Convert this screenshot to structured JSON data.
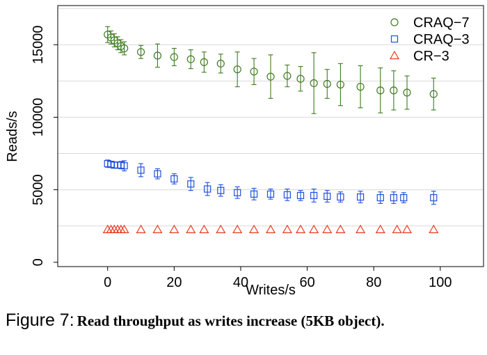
{
  "chart_data": {
    "type": "scatter",
    "xlabel": "Writes/s",
    "ylabel": "Reads/s",
    "xlim": [
      -15,
      113
    ],
    "ylim": [
      -300,
      17700
    ],
    "x_ticks": [
      0,
      20,
      40,
      60,
      80,
      100
    ],
    "y_ticks": [
      0,
      5000,
      10000,
      15000
    ],
    "grid": "horizontal",
    "legend_position": "top-right",
    "series": [
      {
        "name": "CRAQ−7",
        "marker": "circle",
        "color": "#3d7a1e",
        "points": [
          {
            "x": 0,
            "y": 15700,
            "err": 550
          },
          {
            "x": 1,
            "y": 15500,
            "err": 450
          },
          {
            "x": 2,
            "y": 15300,
            "err": 450
          },
          {
            "x": 3,
            "y": 15100,
            "err": 450
          },
          {
            "x": 4,
            "y": 14900,
            "err": 450
          },
          {
            "x": 5,
            "y": 14750,
            "err": 450
          },
          {
            "x": 10,
            "y": 14500,
            "err": 450
          },
          {
            "x": 15,
            "y": 14250,
            "err": 800
          },
          {
            "x": 20,
            "y": 14150,
            "err": 600
          },
          {
            "x": 25,
            "y": 14000,
            "err": 650
          },
          {
            "x": 29,
            "y": 13800,
            "err": 700
          },
          {
            "x": 34,
            "y": 13700,
            "err": 650
          },
          {
            "x": 39,
            "y": 13300,
            "err": 1200
          },
          {
            "x": 44,
            "y": 13150,
            "err": 900
          },
          {
            "x": 49,
            "y": 12800,
            "err": 1500
          },
          {
            "x": 54,
            "y": 12850,
            "err": 750
          },
          {
            "x": 58,
            "y": 12650,
            "err": 850
          },
          {
            "x": 62,
            "y": 12350,
            "err": 2100
          },
          {
            "x": 66,
            "y": 12300,
            "err": 1000
          },
          {
            "x": 70,
            "y": 12250,
            "err": 1450
          },
          {
            "x": 76,
            "y": 12100,
            "err": 1450
          },
          {
            "x": 82,
            "y": 11850,
            "err": 1550
          },
          {
            "x": 86,
            "y": 11850,
            "err": 1350
          },
          {
            "x": 90,
            "y": 11700,
            "err": 1150
          },
          {
            "x": 98,
            "y": 11600,
            "err": 1100
          }
        ]
      },
      {
        "name": "CRAQ−3",
        "marker": "square",
        "color": "#1f4fe0",
        "points": [
          {
            "x": 0,
            "y": 6800,
            "err": 250
          },
          {
            "x": 1,
            "y": 6750,
            "err": 200
          },
          {
            "x": 2,
            "y": 6700,
            "err": 200
          },
          {
            "x": 3,
            "y": 6700,
            "err": 200
          },
          {
            "x": 4,
            "y": 6700,
            "err": 250
          },
          {
            "x": 5,
            "y": 6650,
            "err": 350
          },
          {
            "x": 10,
            "y": 6350,
            "err": 450
          },
          {
            "x": 15,
            "y": 6100,
            "err": 350
          },
          {
            "x": 20,
            "y": 5750,
            "err": 350
          },
          {
            "x": 25,
            "y": 5400,
            "err": 450
          },
          {
            "x": 30,
            "y": 5050,
            "err": 450
          },
          {
            "x": 34,
            "y": 4950,
            "err": 400
          },
          {
            "x": 39,
            "y": 4800,
            "err": 400
          },
          {
            "x": 44,
            "y": 4700,
            "err": 400
          },
          {
            "x": 49,
            "y": 4700,
            "err": 350
          },
          {
            "x": 54,
            "y": 4650,
            "err": 400
          },
          {
            "x": 58,
            "y": 4600,
            "err": 350
          },
          {
            "x": 62,
            "y": 4600,
            "err": 450
          },
          {
            "x": 66,
            "y": 4550,
            "err": 400
          },
          {
            "x": 70,
            "y": 4500,
            "err": 350
          },
          {
            "x": 76,
            "y": 4500,
            "err": 400
          },
          {
            "x": 82,
            "y": 4450,
            "err": 400
          },
          {
            "x": 86,
            "y": 4450,
            "err": 400
          },
          {
            "x": 89,
            "y": 4450,
            "err": 350
          },
          {
            "x": 98,
            "y": 4450,
            "err": 450
          }
        ]
      },
      {
        "name": "CR−3",
        "marker": "triangle",
        "color": "#e8391f",
        "points": [
          {
            "x": 0,
            "y": 2250,
            "err": 0
          },
          {
            "x": 1,
            "y": 2250,
            "err": 0
          },
          {
            "x": 2,
            "y": 2250,
            "err": 0
          },
          {
            "x": 3,
            "y": 2250,
            "err": 0
          },
          {
            "x": 4,
            "y": 2250,
            "err": 0
          },
          {
            "x": 5,
            "y": 2250,
            "err": 0
          },
          {
            "x": 10,
            "y": 2250,
            "err": 0
          },
          {
            "x": 15,
            "y": 2250,
            "err": 0
          },
          {
            "x": 20,
            "y": 2250,
            "err": 0
          },
          {
            "x": 25,
            "y": 2250,
            "err": 0
          },
          {
            "x": 29,
            "y": 2250,
            "err": 0
          },
          {
            "x": 34,
            "y": 2250,
            "err": 0
          },
          {
            "x": 39,
            "y": 2250,
            "err": 0
          },
          {
            "x": 44,
            "y": 2250,
            "err": 0
          },
          {
            "x": 49,
            "y": 2250,
            "err": 0
          },
          {
            "x": 54,
            "y": 2250,
            "err": 0
          },
          {
            "x": 58,
            "y": 2250,
            "err": 0
          },
          {
            "x": 62,
            "y": 2250,
            "err": 0
          },
          {
            "x": 66,
            "y": 2250,
            "err": 0
          },
          {
            "x": 70,
            "y": 2250,
            "err": 0
          },
          {
            "x": 76,
            "y": 2250,
            "err": 0
          },
          {
            "x": 82,
            "y": 2250,
            "err": 0
          },
          {
            "x": 87,
            "y": 2250,
            "err": 0
          },
          {
            "x": 90,
            "y": 2250,
            "err": 0
          },
          {
            "x": 98,
            "y": 2250,
            "err": 0
          }
        ]
      }
    ]
  },
  "caption": {
    "prefix": "Figure 7:",
    "text": "Read throughput as writes increase (5KB object)."
  }
}
